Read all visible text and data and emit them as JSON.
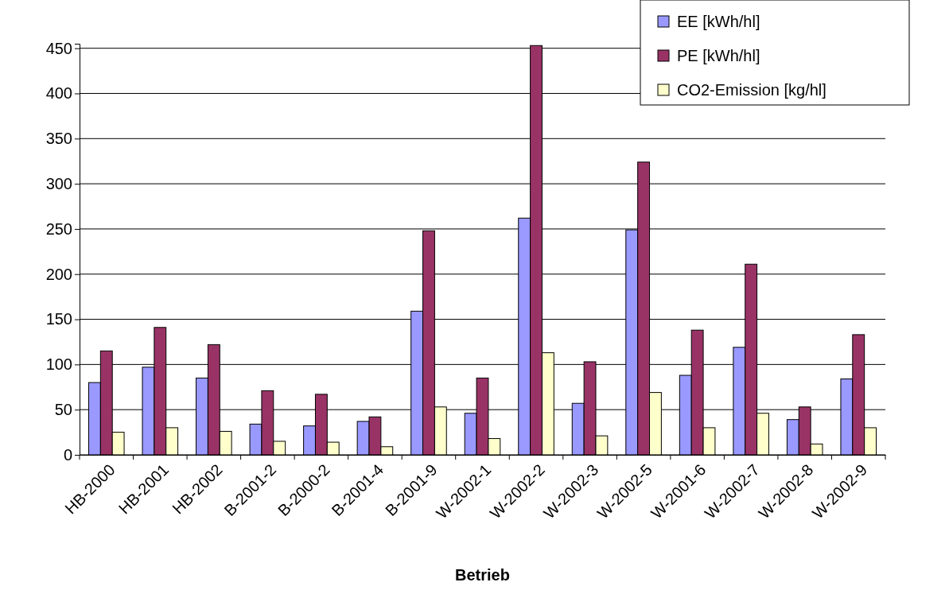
{
  "chart_data": {
    "type": "bar",
    "xlabel": "Betrieb",
    "categories": [
      "HB-2000",
      "HB-2001",
      "HB-2002",
      "B-2001-2",
      "B-2000-2",
      "B-2001-4",
      "B-2001-9",
      "W-2002-1",
      "W-2002-2",
      "W-2002-3",
      "W-2002-5",
      "W-2001-6",
      "W-2002-7",
      "W-2002-8",
      "W-2002-9"
    ],
    "series": [
      {
        "name": "EE [kWh/hl]",
        "color": "#9999ff",
        "values": [
          80,
          97,
          85,
          34,
          32,
          37,
          159,
          46,
          262,
          57,
          249,
          88,
          119,
          39,
          84
        ]
      },
      {
        "name": "PE [kWh/hl]",
        "color": "#993366",
        "values": [
          115,
          141,
          122,
          71,
          67,
          42,
          248,
          85,
          453,
          103,
          324,
          138,
          211,
          53,
          133
        ]
      },
      {
        "name": "CO2-Emission [kg/hl]",
        "color": "#ffffcc",
        "values": [
          25,
          30,
          26,
          15,
          14,
          9,
          53,
          18,
          113,
          21,
          69,
          30,
          46,
          12,
          30
        ]
      }
    ],
    "ylim": [
      0,
      455
    ],
    "yticks": [
      0,
      50,
      100,
      150,
      200,
      250,
      300,
      350,
      400,
      450
    ],
    "grid": "y",
    "legend": "top right"
  }
}
